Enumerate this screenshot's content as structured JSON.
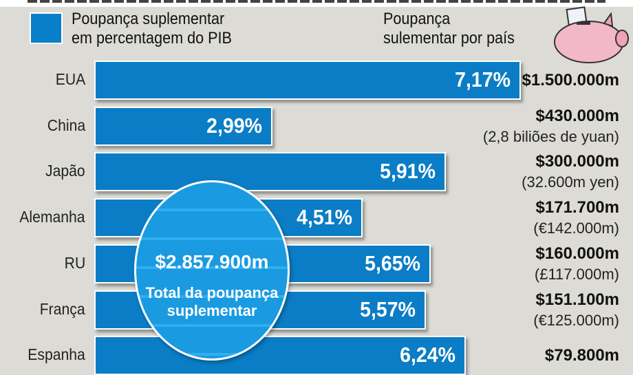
{
  "legend": {
    "pct_label_1": "Poupança suplementar",
    "pct_label_2": "em percentagem do PIB",
    "amt_label_1": "Poupança",
    "amt_label_2": "sulementar por país"
  },
  "total": {
    "amount": "$2.857.900m",
    "label_1": "Total da poupança",
    "label_2": "suplementar"
  },
  "colors": {
    "bar": "#0b7dc6",
    "background": "#dcdbd5",
    "circle": "#1a9ae0"
  },
  "chart_data": {
    "type": "bar",
    "orientation": "horizontal",
    "ylabel": "Poupança suplementar em percentagem do PIB",
    "categories": [
      "EUA",
      "China",
      "Japão",
      "Alemanha",
      "RU",
      "França",
      "Espanha"
    ],
    "values": [
      7.17,
      2.99,
      5.91,
      4.51,
      5.65,
      5.57,
      6.24
    ],
    "value_labels": [
      "7,17%",
      "2,99%",
      "5,91%",
      "4,51%",
      "5,65%",
      "5,57%",
      "6,24%"
    ],
    "amounts": [
      "$1.500.000m",
      "$430.000m",
      "$300.000m",
      "$171.700m",
      "$160.000m",
      "$151.100m",
      "$79.800m"
    ],
    "local_amounts": [
      "",
      "(2,8 biliões de yuan)",
      "(32.600m yen)",
      "(€142.000m)",
      "(£117.000m)",
      "(€125.000m)",
      ""
    ]
  }
}
